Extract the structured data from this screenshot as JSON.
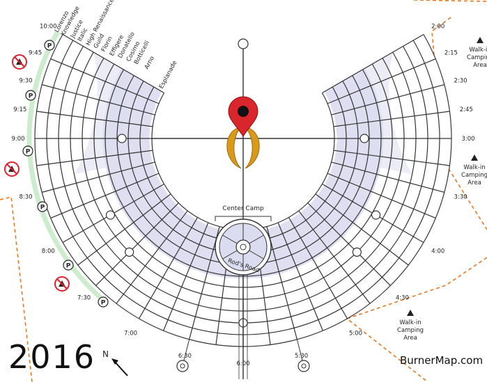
{
  "year_label": "2016",
  "brand": "BurnerMap.com",
  "north_label": "N",
  "center_camp_label": "Center Camp",
  "rods_road_label": "Rod's Road",
  "streets": [
    "Lorenzo",
    "Knowledge",
    "Justice",
    "Italic",
    "High Renaissance",
    "Guild",
    "Florin",
    "Effigere",
    "Donatello",
    "Cosimo",
    "Botticelli",
    "Arno",
    "Esplanade"
  ],
  "times": [
    {
      "label": "2:00",
      "clock": 2.0
    },
    {
      "label": "2:15",
      "clock": 2.25
    },
    {
      "label": "2:30",
      "clock": 2.5
    },
    {
      "label": "2:45",
      "clock": 2.75
    },
    {
      "label": "3:00",
      "clock": 3.0
    },
    {
      "label": "3:30",
      "clock": 3.5
    },
    {
      "label": "4:00",
      "clock": 4.0
    },
    {
      "label": "4:30",
      "clock": 4.5
    },
    {
      "label": "5:00",
      "clock": 5.0
    },
    {
      "label": "5:30",
      "clock": 5.5
    },
    {
      "label": "6:00",
      "clock": 6.0
    },
    {
      "label": "6:30",
      "clock": 6.5
    },
    {
      "label": "7:00",
      "clock": 7.0
    },
    {
      "label": "7:30",
      "clock": 7.5
    },
    {
      "label": "8:00",
      "clock": 8.0
    },
    {
      "label": "8:30",
      "clock": 8.5
    },
    {
      "label": "9:00",
      "clock": 9.0
    },
    {
      "label": "9:15",
      "clock": 9.25
    },
    {
      "label": "9:30",
      "clock": 9.5
    },
    {
      "label": "9:45",
      "clock": 9.75
    },
    {
      "label": "10:00",
      "clock": 10.0
    }
  ],
  "walk_in_camping": [
    {
      "lines": [
        "Walk-in",
        "Camping",
        "Area"
      ]
    },
    {
      "lines": [
        "Walk-in",
        "Camping",
        "Area"
      ]
    },
    {
      "lines": [
        "Walk-in",
        "Camping",
        "Area"
      ]
    }
  ],
  "parking_symbol": "P",
  "colors": {
    "block": "#dcdcf0",
    "grid": "#333333",
    "fence": "#e8781e",
    "pin": "#d9262c",
    "moon": "#d99a1a",
    "green": "#cdeccd",
    "no_camp": "#e0202a"
  }
}
